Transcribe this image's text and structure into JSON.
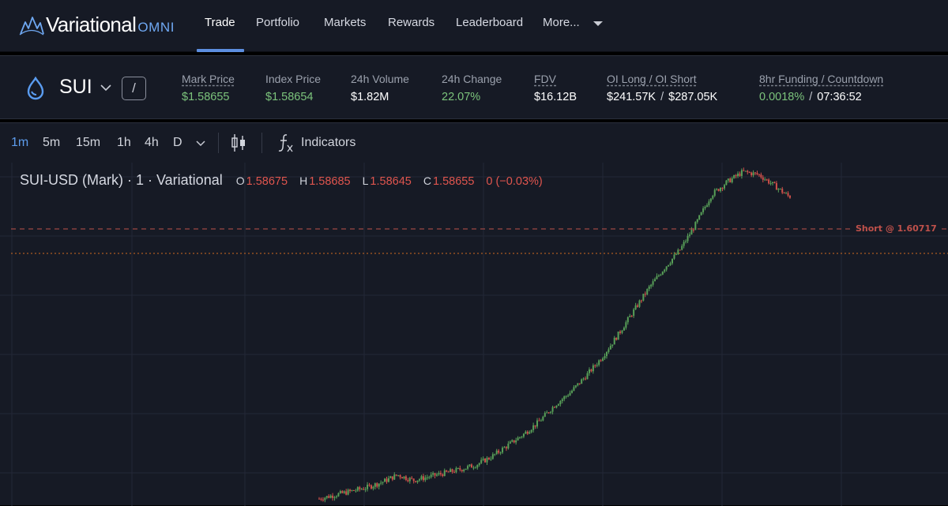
{
  "brand": {
    "name": "Variational",
    "sub": "OMNI"
  },
  "nav": {
    "items": [
      "Trade",
      "Portfolio",
      "Markets",
      "Rewards",
      "Leaderboard",
      "More..."
    ],
    "active": "Trade"
  },
  "market": {
    "symbol": "SUI",
    "slash": "/",
    "stats": [
      {
        "label": "Mark Price",
        "value": "$1.58655"
      },
      {
        "label": "Index Price",
        "value": "$1.58654"
      },
      {
        "label": "24h Volume",
        "value": "$1.82M"
      },
      {
        "label": "24h Change",
        "value": "22.07%"
      },
      {
        "label": "FDV",
        "value": "$16.12B"
      },
      {
        "label": "OI Long / OI Short",
        "value_long": "$241.57K",
        "value_short": "$287.05K",
        "separator": "/"
      },
      {
        "label": "8hr Funding / Countdown",
        "value_funding": "0.0018%",
        "value_countdown": "07:36:52",
        "separator": "/"
      }
    ]
  },
  "toolbar": {
    "timeframes": [
      "1m",
      "5m",
      "15m",
      "1h",
      "4h",
      "D"
    ],
    "active_timeframe": "1m",
    "indicators_label": "Indicators"
  },
  "chart_legend": {
    "title": "SUI-USD (Mark) · 1 · Variational",
    "o_key": "O",
    "o": "1.58675",
    "h_key": "H",
    "h": "1.58685",
    "l_key": "L",
    "l": "1.58645",
    "c_key": "C",
    "c": "1.58655",
    "change": "0 (−0.03%)"
  },
  "chart": {
    "short_line_label": "Short @ 1.60717",
    "short_price": 1.60717,
    "current_price": 1.58655,
    "colors": {
      "up": "#58a058",
      "down": "#d0504a",
      "short_line": "#c0514b",
      "price_line": "#d2691e"
    }
  },
  "chart_data": {
    "type": "candlestick",
    "interval": "1m",
    "series_name": "SUI-USD (Mark)",
    "last_close": 1.58655,
    "reference_lines": [
      1.60717,
      1.58655
    ],
    "close_trend": [
      1.258,
      1.262,
      1.266,
      1.27,
      1.276,
      1.284,
      1.278,
      1.282,
      1.286,
      1.29,
      1.295,
      1.304,
      1.316,
      1.328,
      1.342,
      1.36,
      1.374,
      1.392,
      1.412,
      1.436,
      1.462,
      1.488,
      1.51,
      1.53,
      1.558,
      1.59,
      1.604,
      1.615,
      1.612,
      1.6,
      1.587
    ]
  }
}
